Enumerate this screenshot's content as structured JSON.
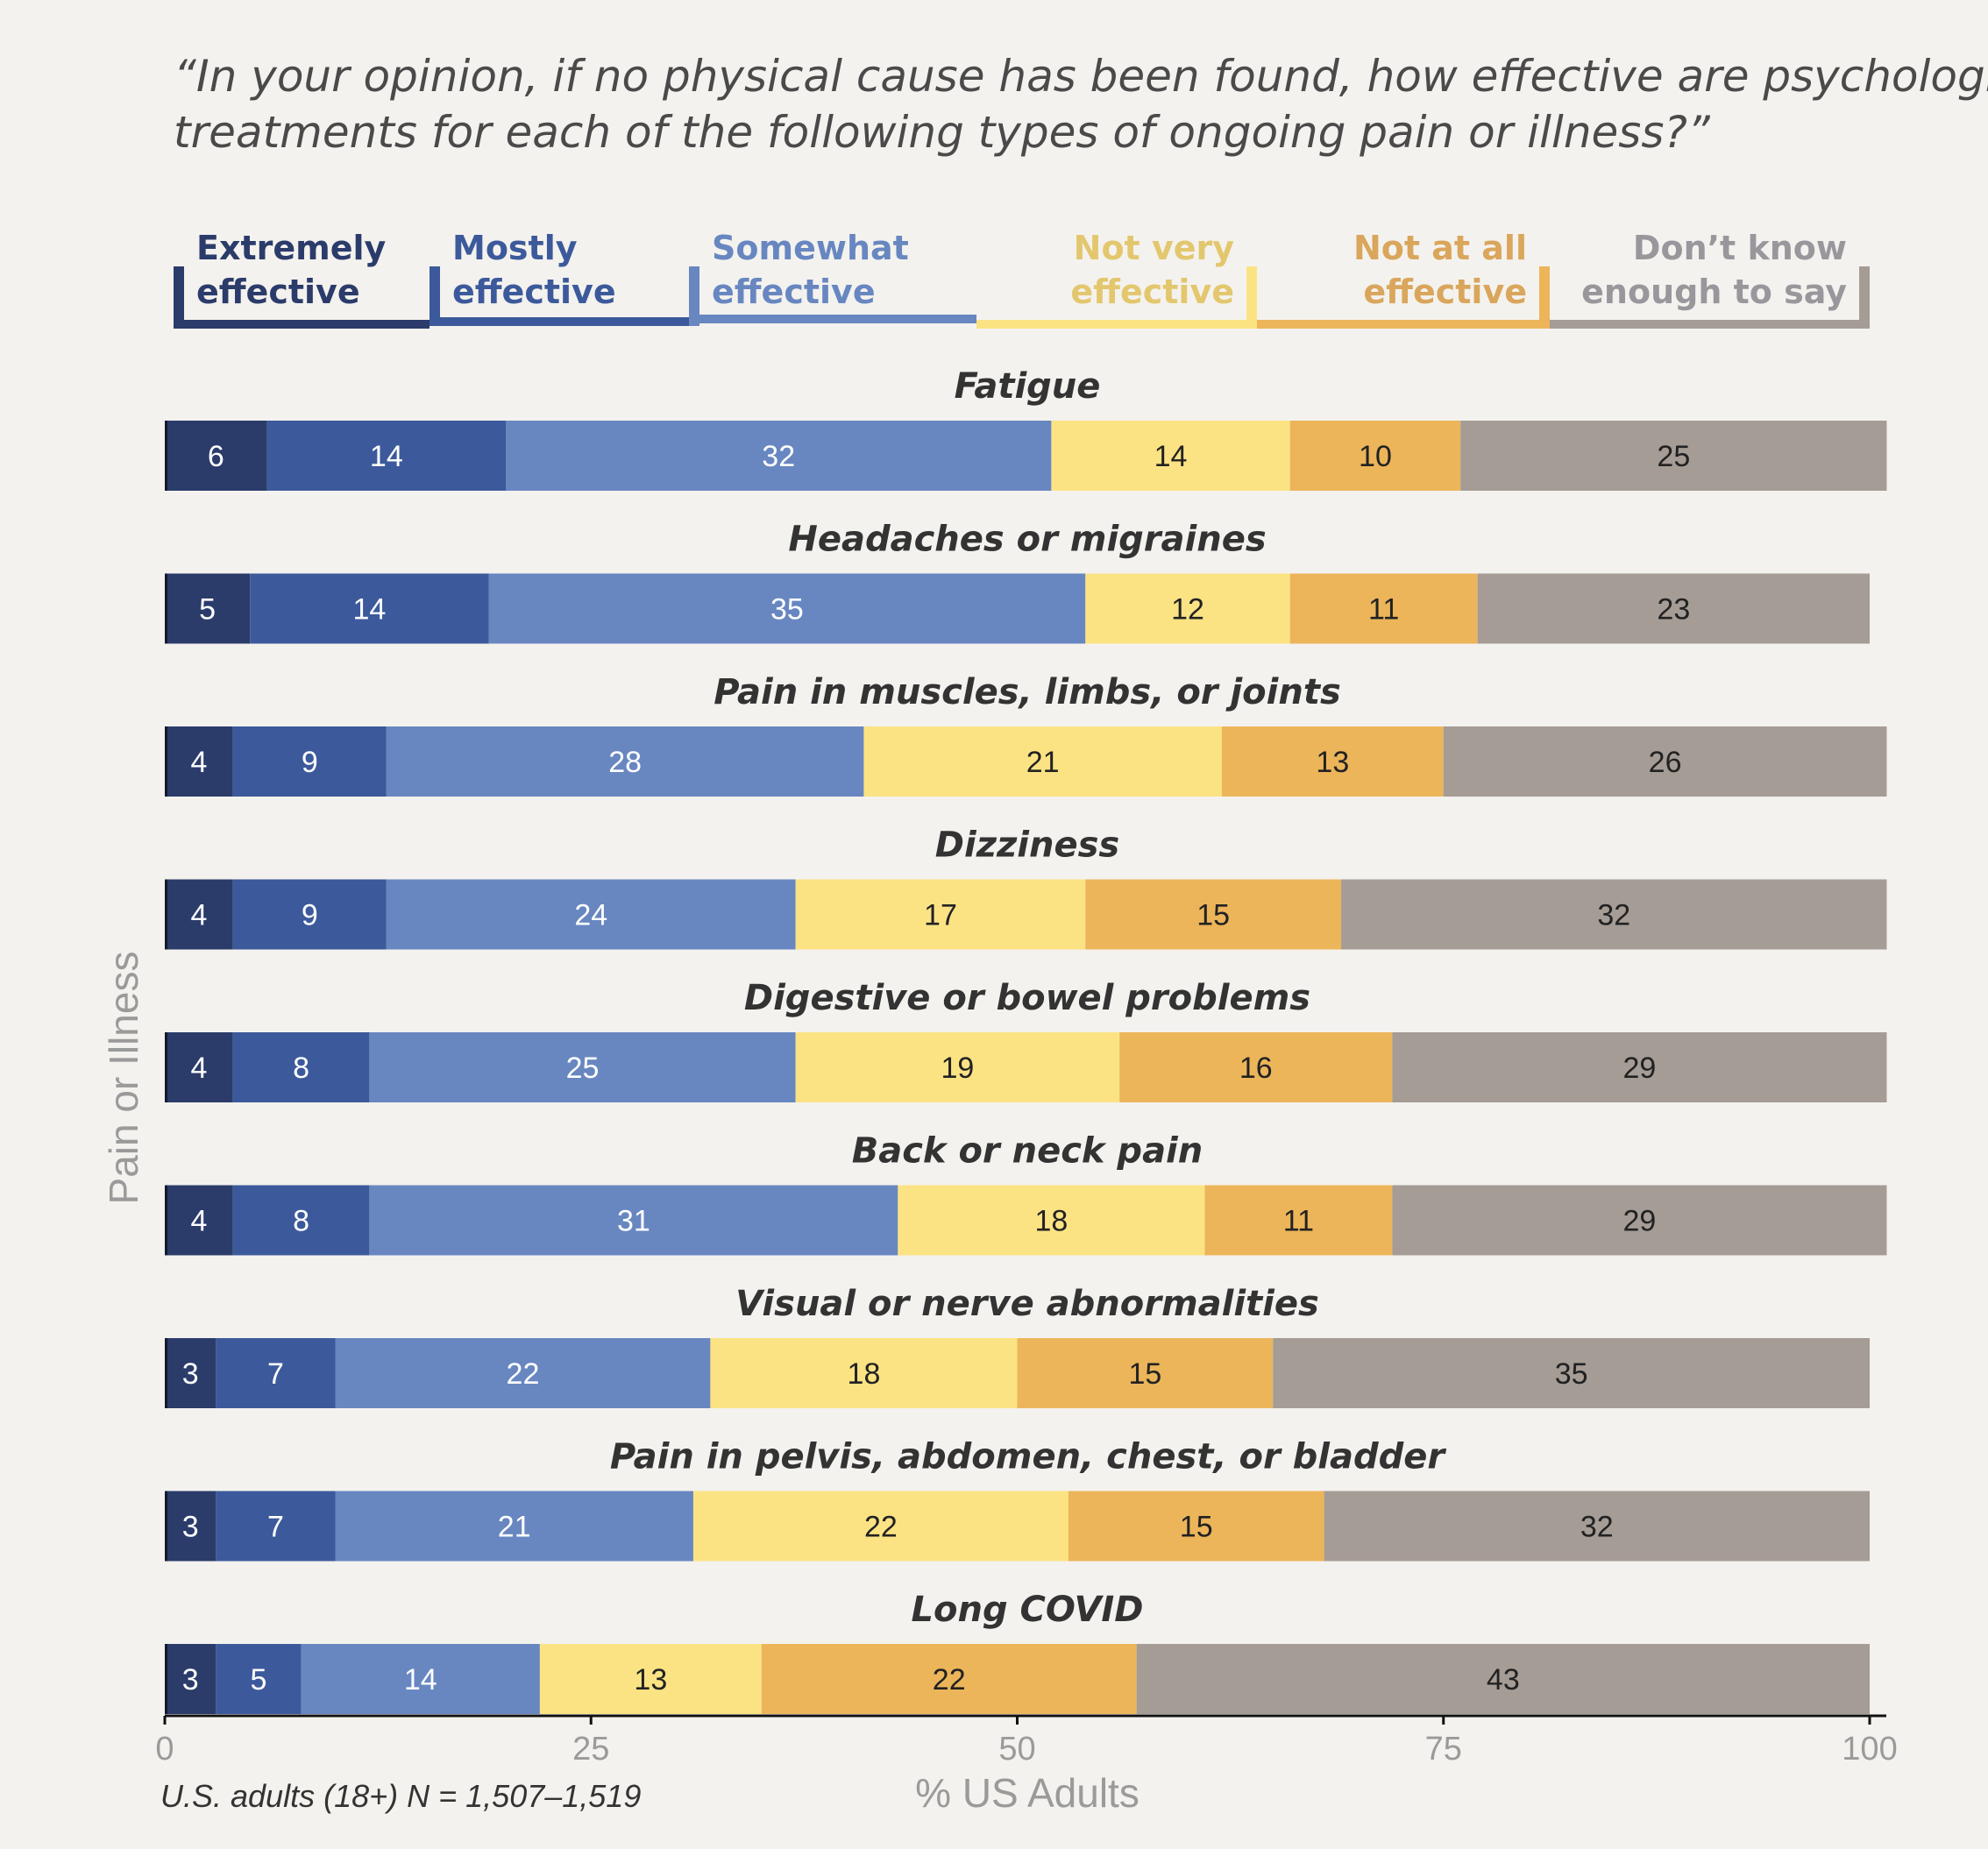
{
  "chart_data": {
    "type": "bar",
    "orientation": "horizontal",
    "stacked": true,
    "title_lines": [
      "“In your opinion, if no physical cause has been found, how effective are psychological",
      "treatments for each of the following types of ongoing pain or illness?”"
    ],
    "xlabel": "% US Adults",
    "ylabel": "Pain or Illness",
    "xlim": [
      0,
      100
    ],
    "xticks": [
      0,
      25,
      50,
      75,
      100
    ],
    "note": "U.S. adults (18+) N = 1,507–1,519",
    "legend_placement": "top",
    "categories": [
      "Fatigue",
      "Headaches or migraines",
      "Pain in muscles, limbs, or joints",
      "Dizziness",
      "Digestive or bowel problems",
      "Back or neck pain",
      "Visual or nerve abnormalities",
      "Pain in pelvis, abdomen, chest, or bladder",
      "Long COVID"
    ],
    "series": [
      {
        "name": "Extremely effective",
        "legend_lines": [
          "Extremely",
          "effective"
        ],
        "color": "#2b3c6b",
        "label_color": "#ffffff",
        "values": [
          6,
          5,
          4,
          4,
          4,
          4,
          3,
          3,
          3
        ]
      },
      {
        "name": "Mostly effective",
        "legend_lines": [
          "Mostly",
          "effective"
        ],
        "color": "#3c5a9b",
        "label_color": "#ffffff",
        "values": [
          14,
          14,
          9,
          9,
          8,
          8,
          7,
          7,
          5
        ]
      },
      {
        "name": "Somewhat effective",
        "legend_lines": [
          "Somewhat",
          "effective"
        ],
        "color": "#6887c1",
        "label_color": "#ffffff",
        "values": [
          32,
          35,
          28,
          24,
          25,
          31,
          22,
          21,
          14
        ]
      },
      {
        "name": "Not very effective",
        "legend_lines": [
          "Not very",
          "effective"
        ],
        "color": "#fbe384",
        "label_color": "#222222",
        "values": [
          14,
          12,
          21,
          17,
          19,
          18,
          18,
          22,
          13
        ]
      },
      {
        "name": "Not at all effective",
        "legend_lines": [
          "Not at all",
          "effective"
        ],
        "color": "#ecb55a",
        "label_color": "#222222",
        "values": [
          10,
          11,
          13,
          15,
          16,
          11,
          15,
          15,
          22
        ]
      },
      {
        "name": "Don’t know enough to say",
        "legend_lines": [
          "Don’t know",
          "enough to say"
        ],
        "color": "#a59c95",
        "label_color": "#222222",
        "values": [
          25,
          23,
          26,
          32,
          29,
          29,
          35,
          32,
          43
        ]
      }
    ],
    "legend_text_colors": [
      "#2b3c6b",
      "#3c5a9b",
      "#6887c1",
      "#e3c76e",
      "#d9a65c",
      "#9a979c"
    ]
  }
}
